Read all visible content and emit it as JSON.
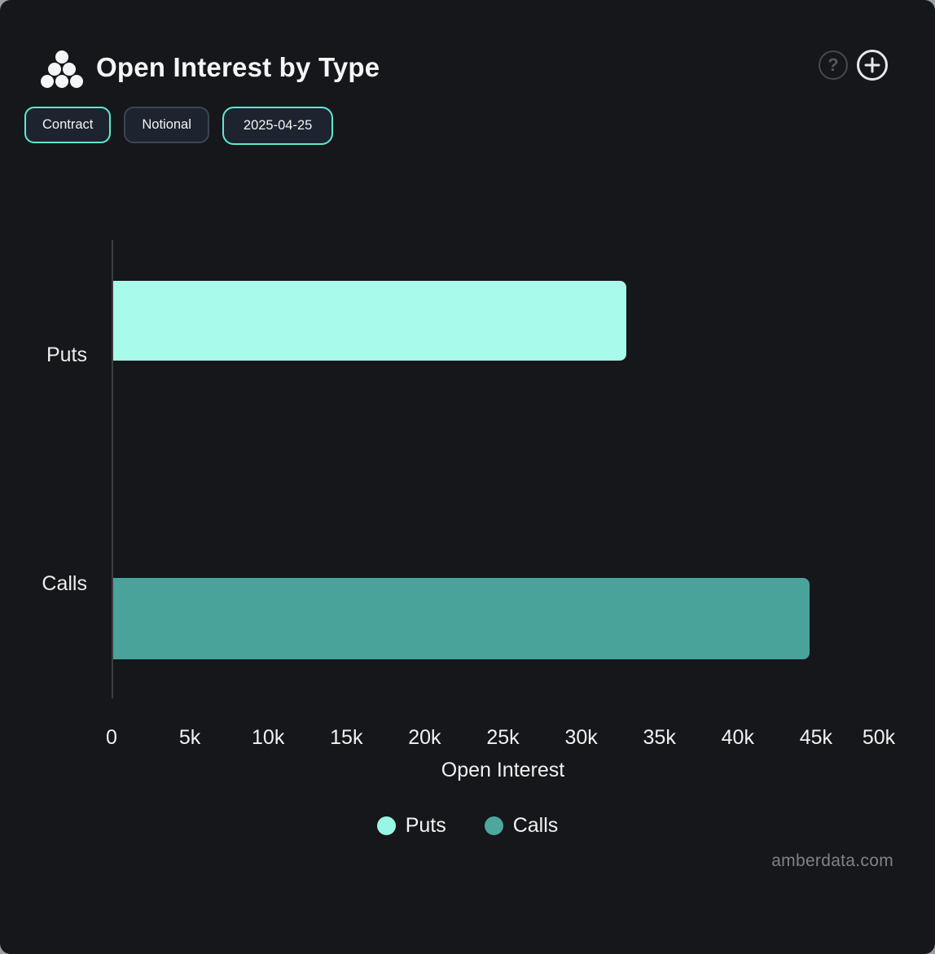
{
  "header": {
    "title": "Open Interest by Type",
    "logo_icon": "amberdata-dots-logo",
    "help_label": "?",
    "add_label": "+"
  },
  "toolbar": {
    "buttons": [
      {
        "label": "Contract",
        "active": true
      },
      {
        "label": "Notional",
        "active": false
      },
      {
        "label": "2025-04-25",
        "active": true
      }
    ]
  },
  "chart_data": {
    "type": "bar",
    "orientation": "horizontal",
    "title": "Open Interest by Type",
    "categories": [
      "Puts",
      "Calls"
    ],
    "values": [
      32800,
      44500
    ],
    "colors": [
      "#a8faeb",
      "#4aa39a"
    ],
    "xlabel": "Open Interest",
    "ylabel": "",
    "xlim": [
      0,
      50000
    ],
    "x_ticks": [
      "0",
      "5k",
      "10k",
      "15k",
      "20k",
      "25k",
      "30k",
      "35k",
      "40k",
      "45k",
      "50k"
    ],
    "grid": false,
    "legend": [
      {
        "label": "Puts",
        "color": "#99f6e4"
      },
      {
        "label": "Calls",
        "color": "#4da79d"
      }
    ],
    "legend_position": "bottom",
    "date": "2025-04-25"
  },
  "footer": {
    "watermark": "amberdata.com"
  },
  "colors": {
    "panel_background": "#15171a",
    "accent_teal_border": "#5ee9d2",
    "muted_border": "#3d4553",
    "chip_background": "#1d2430",
    "axis_line": "#3a3d41",
    "text_primary": "#f5f6f7",
    "text_secondary": "#7f8286",
    "puts_bar": "#a8faeb",
    "calls_bar": "#4aa39a"
  }
}
